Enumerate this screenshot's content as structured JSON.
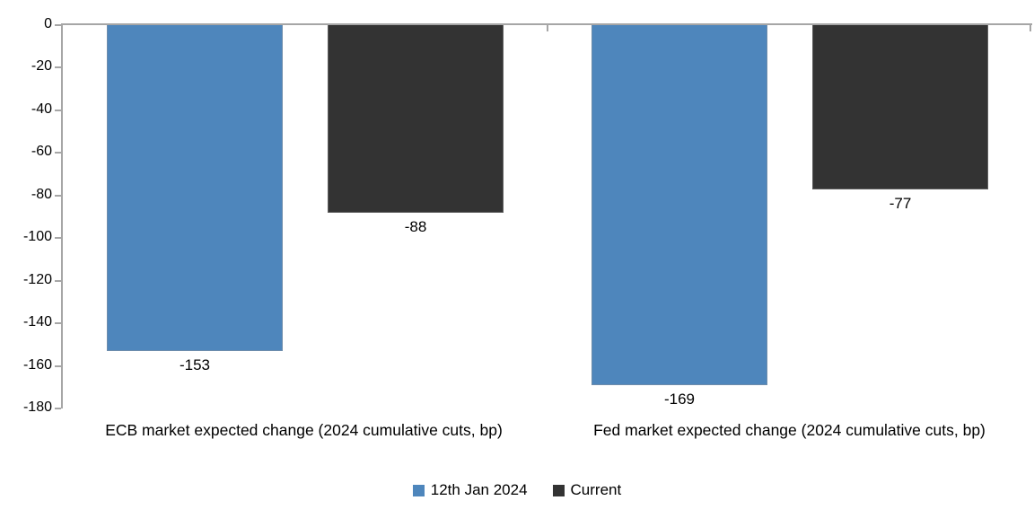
{
  "chart_data": {
    "type": "bar",
    "title": "",
    "xlabel": "",
    "ylabel": "",
    "categories": [
      "ECB market expected change (2024 cumulative cuts, bp)",
      "Fed market expected change (2024 cumulative cuts, bp)"
    ],
    "series": [
      {
        "name": "12th Jan 2024",
        "color": "#4E86BC",
        "values": [
          -153,
          -169
        ]
      },
      {
        "name": "Current",
        "color": "#333333",
        "values": [
          -88,
          -77
        ]
      }
    ],
    "data_labels": [
      [
        "-153",
        "-169"
      ],
      [
        "-88",
        "-77"
      ]
    ],
    "ylim": [
      -180,
      0
    ],
    "yticks": [
      0,
      -20,
      -40,
      -60,
      -80,
      -100,
      -120,
      -140,
      -160,
      -180
    ],
    "grid": false,
    "legend_position": "bottom",
    "bars_hang_from_zero_line": true,
    "colors": {
      "axis": "#A6A6A6",
      "text": "#000000",
      "background": "#FFFFFF"
    }
  }
}
